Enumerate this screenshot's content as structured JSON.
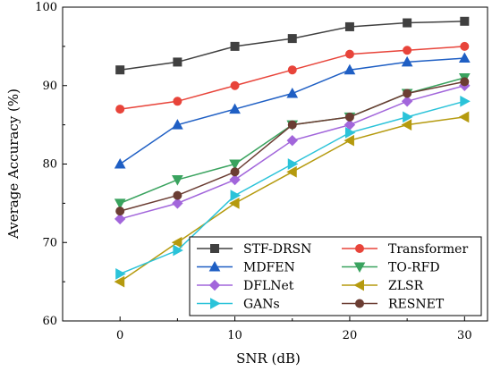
{
  "chart_data": {
    "type": "line",
    "xlabel": "SNR (dB)",
    "ylabel": "Average Accuracy (%)",
    "xlim": [
      -5,
      32
    ],
    "ylim": [
      60,
      100
    ],
    "xticks": [
      0,
      10,
      20,
      30
    ],
    "yticks": [
      60,
      70,
      80,
      90,
      100
    ],
    "x": [
      0,
      5,
      10,
      15,
      20,
      25,
      30
    ],
    "grid": false,
    "legend_position": "bottom-right",
    "series": [
      {
        "name": "STF-DRSN",
        "color": "#404040",
        "marker": "square",
        "values": [
          92,
          93,
          95,
          96,
          97.5,
          98,
          98.2
        ]
      },
      {
        "name": "Transformer",
        "color": "#e8443a",
        "marker": "circle",
        "values": [
          87,
          88,
          90,
          92,
          94,
          94.5,
          95
        ]
      },
      {
        "name": "MDFEN",
        "color": "#1f5fc4",
        "marker": "triangle-up",
        "values": [
          80,
          85,
          87,
          89,
          92,
          93,
          93.5
        ]
      },
      {
        "name": "TO-RFD",
        "color": "#3aa35f",
        "marker": "triangle-down",
        "values": [
          75,
          78,
          80,
          85,
          86,
          89,
          91
        ]
      },
      {
        "name": "DFLNet",
        "color": "#a266db",
        "marker": "diamond",
        "values": [
          73,
          75,
          78,
          83,
          85,
          88,
          90
        ]
      },
      {
        "name": "ZLSR",
        "color": "#b59a0e",
        "marker": "triangle-left",
        "values": [
          65,
          70,
          75,
          79,
          83,
          85,
          86
        ]
      },
      {
        "name": "GANs",
        "color": "#2bc3d9",
        "marker": "triangle-right",
        "values": [
          66,
          69,
          76,
          80,
          84,
          86,
          88
        ]
      },
      {
        "name": "RESNET",
        "color": "#6b3d33",
        "marker": "circle",
        "values": [
          74,
          76,
          79,
          85,
          86,
          89,
          90.5
        ]
      }
    ]
  }
}
